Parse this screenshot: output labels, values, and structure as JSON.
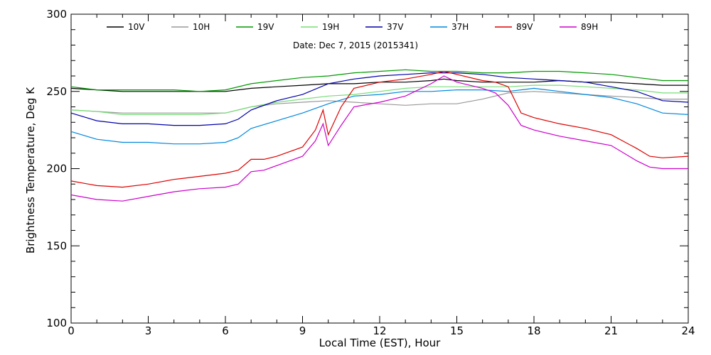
{
  "chart_data": {
    "type": "line",
    "title": "",
    "annotation": "Date: Dec  7, 2015 (2015341)",
    "xlabel": "Local Time (EST), Hour",
    "ylabel": "Brightness Temperature, Deg K",
    "xlim": [
      0,
      24
    ],
    "ylim": [
      100,
      300
    ],
    "xticks": [
      0,
      3,
      6,
      9,
      12,
      15,
      18,
      21,
      24
    ],
    "yticks": [
      100,
      150,
      200,
      250,
      300
    ],
    "grid": false,
    "legend_position": "top",
    "series": [
      {
        "name": "10V",
        "color": "#000000",
        "x": [
          0,
          1,
          2,
          3,
          4,
          5,
          6,
          7,
          8,
          9,
          10,
          11,
          12,
          13,
          14,
          14.5,
          15,
          16,
          17,
          18,
          19,
          20,
          21,
          22,
          23,
          24
        ],
        "y": [
          252,
          251,
          250,
          250,
          250,
          250,
          250,
          252,
          253,
          254,
          255,
          255,
          256,
          256,
          257,
          258,
          257,
          256,
          256,
          256,
          257,
          256,
          256,
          255,
          254,
          254
        ]
      },
      {
        "name": "10H",
        "color": "#999999",
        "x": [
          0,
          1,
          2,
          3,
          4,
          5,
          6,
          7,
          8,
          9,
          10,
          11,
          12,
          13,
          14,
          15,
          16,
          17,
          18,
          19,
          20,
          21,
          22,
          23,
          24
        ],
        "y": [
          238,
          237,
          236,
          236,
          236,
          236,
          236,
          240,
          242,
          243,
          244,
          243,
          242,
          241,
          242,
          242,
          245,
          249,
          250,
          249,
          248,
          247,
          246,
          245,
          245
        ]
      },
      {
        "name": "19V",
        "color": "#009900",
        "x": [
          0,
          1,
          2,
          3,
          4,
          5,
          6,
          7,
          8,
          9,
          10,
          11,
          12,
          13,
          14,
          15,
          16,
          17,
          18,
          19,
          20,
          21,
          22,
          23,
          24
        ],
        "y": [
          253,
          251,
          251,
          251,
          251,
          250,
          251,
          255,
          257,
          259,
          260,
          262,
          263,
          264,
          263,
          263,
          262,
          262,
          263,
          263,
          262,
          261,
          259,
          257,
          257
        ]
      },
      {
        "name": "19H",
        "color": "#77dd77",
        "x": [
          0,
          1,
          2,
          3,
          4,
          5,
          6,
          7,
          8,
          9,
          10,
          11,
          12,
          13,
          14,
          15,
          16,
          17,
          18,
          19,
          20,
          21,
          22,
          23,
          24
        ],
        "y": [
          238,
          237,
          235,
          235,
          235,
          235,
          236,
          240,
          243,
          245,
          247,
          248,
          250,
          252,
          253,
          253,
          253,
          253,
          254,
          254,
          253,
          252,
          251,
          249,
          249
        ]
      },
      {
        "name": "37V",
        "color": "#0000aa",
        "x": [
          0,
          1,
          2,
          3,
          4,
          5,
          6,
          6.5,
          7,
          8,
          9,
          10,
          11,
          12,
          13,
          14,
          15,
          16,
          17,
          18,
          19,
          20,
          21,
          22,
          23,
          24
        ],
        "y": [
          236,
          231,
          229,
          229,
          228,
          228,
          229,
          232,
          238,
          244,
          248,
          255,
          258,
          260,
          261,
          262,
          262,
          261,
          259,
          258,
          257,
          256,
          253,
          250,
          244,
          243
        ]
      },
      {
        "name": "37H",
        "color": "#0088dd",
        "x": [
          0,
          1,
          2,
          3,
          4,
          5,
          6,
          6.5,
          7,
          8,
          9,
          10,
          11,
          12,
          13,
          14,
          15,
          16,
          17,
          18,
          19,
          20,
          21,
          22,
          23,
          24
        ],
        "y": [
          224,
          219,
          217,
          217,
          216,
          216,
          217,
          220,
          226,
          231,
          236,
          242,
          247,
          248,
          250,
          250,
          251,
          251,
          250,
          252,
          250,
          248,
          246,
          242,
          236,
          235
        ]
      },
      {
        "name": "89V",
        "color": "#dd0000",
        "x": [
          0,
          1,
          2,
          3,
          4,
          5,
          6,
          6.5,
          7,
          7.5,
          8,
          9,
          9.5,
          9.8,
          10,
          10.5,
          11,
          12,
          13,
          14,
          14.5,
          15,
          16,
          16.5,
          17,
          17.5,
          18,
          19,
          20,
          21,
          22,
          22.5,
          23,
          24
        ],
        "y": [
          192,
          189,
          188,
          190,
          193,
          195,
          197,
          199,
          206,
          206,
          208,
          214,
          225,
          238,
          222,
          240,
          252,
          256,
          258,
          261,
          263,
          261,
          257,
          256,
          253,
          236,
          233,
          229,
          226,
          222,
          213,
          208,
          207,
          208
        ]
      },
      {
        "name": "89H",
        "color": "#cc00cc",
        "x": [
          0,
          1,
          2,
          3,
          4,
          5,
          6,
          6.5,
          7,
          7.5,
          8,
          9,
          9.5,
          9.8,
          10,
          10.5,
          11,
          12,
          13,
          14,
          14.5,
          15,
          16,
          16.5,
          17,
          17.5,
          18,
          19,
          20,
          21,
          22,
          22.5,
          23,
          24
        ],
        "y": [
          183,
          180,
          179,
          182,
          185,
          187,
          188,
          190,
          198,
          199,
          202,
          208,
          218,
          229,
          215,
          228,
          240,
          243,
          247,
          255,
          260,
          256,
          252,
          249,
          241,
          228,
          225,
          221,
          218,
          215,
          205,
          201,
          200,
          200
        ]
      }
    ]
  }
}
